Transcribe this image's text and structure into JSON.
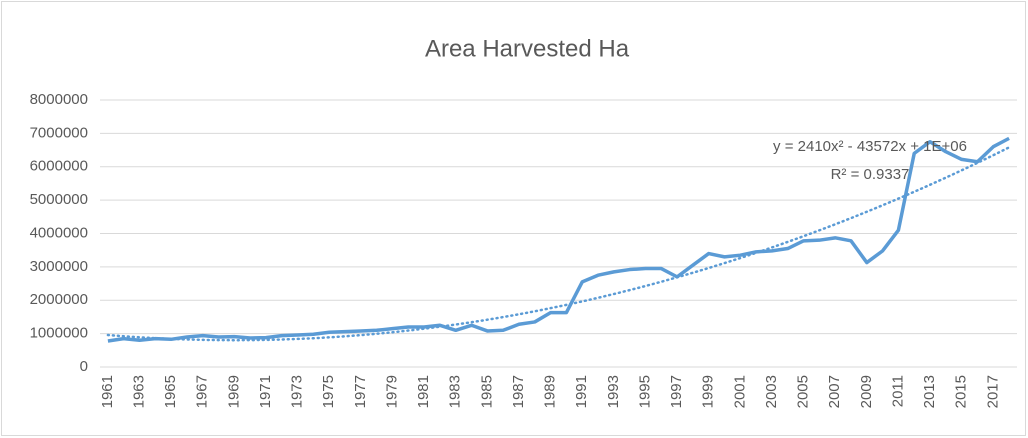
{
  "chart_data": {
    "type": "line",
    "title": "Area Harvested Ha",
    "categories": [
      "1961",
      null,
      "1963",
      null,
      "1965",
      null,
      "1967",
      null,
      "1969",
      null,
      "1971",
      null,
      "1973",
      null,
      "1975",
      null,
      "1977",
      null,
      "1979",
      null,
      "1981",
      null,
      "1983",
      null,
      "1985",
      null,
      "1987",
      null,
      "1989",
      null,
      "1991",
      null,
      "1993",
      null,
      "1995",
      null,
      "1997",
      null,
      "1999",
      null,
      "2001",
      null,
      "2003",
      null,
      "2005",
      null,
      "2007",
      null,
      "2009",
      null,
      "2011",
      null,
      "2013",
      null,
      "2015",
      null,
      "2017",
      null
    ],
    "series": [
      {
        "color": "#5b9bd5",
        "values": [
          780000,
          850000,
          800000,
          850000,
          830000,
          900000,
          940000,
          900000,
          910000,
          870000,
          880000,
          940000,
          960000,
          980000,
          1040000,
          1060000,
          1080000,
          1100000,
          1150000,
          1200000,
          1200000,
          1250000,
          1100000,
          1250000,
          1080000,
          1100000,
          1280000,
          1350000,
          1630000,
          1630000,
          2550000,
          2750000,
          2850000,
          2920000,
          2950000,
          2950000,
          2700000,
          3050000,
          3400000,
          3300000,
          3350000,
          3450000,
          3480000,
          3550000,
          3780000,
          3800000,
          3870000,
          3780000,
          3130000,
          3480000,
          4100000,
          6400000,
          6750000,
          6450000,
          6220000,
          6150000,
          6600000,
          6850000
        ]
      }
    ],
    "trendline": {
      "color": "#5b9bd5",
      "coefficients": [
        2410,
        -43572,
        1000000
      ],
      "equation": "y = 2410x² - 43572x + 1E+06",
      "r_squared": "R² = 0.9337"
    },
    "ylim": [
      0,
      8000000
    ],
    "yticks": [
      0,
      1000000,
      2000000,
      3000000,
      4000000,
      5000000,
      6000000,
      7000000,
      8000000
    ],
    "grid": true
  }
}
